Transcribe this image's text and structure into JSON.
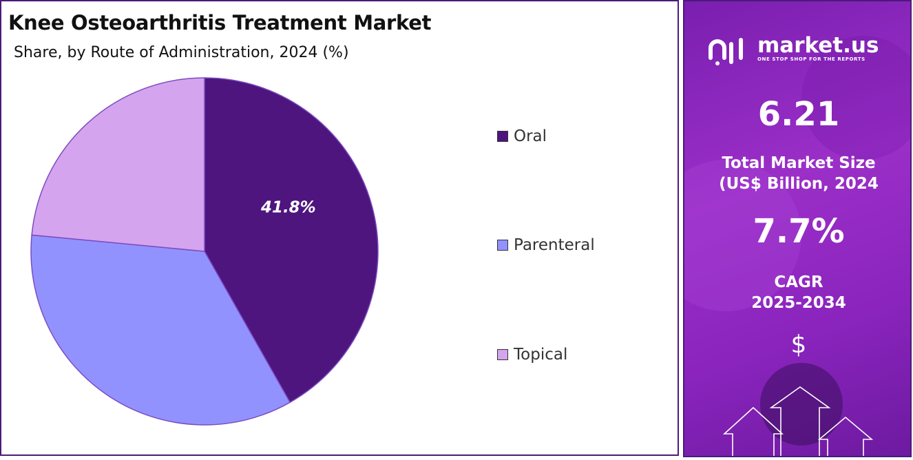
{
  "title": "Knee Osteoarthritis Treatment Market",
  "subtitle": "Share, by Route of Administration, 2024 (%)",
  "chart_data": {
    "type": "pie",
    "title": "Knee Osteoarthritis Treatment Market",
    "subtitle": "Share, by Route of Administration, 2024 (%)",
    "categories": [
      "Oral",
      "Parenteral",
      "Topical"
    ],
    "values": [
      41.8,
      34.7,
      23.5
    ],
    "colors": [
      "#4e157f",
      "#9292ff",
      "#d4a4ee"
    ],
    "labels": [
      "41.8%",
      "",
      ""
    ],
    "legend_position": "right"
  },
  "sidebar": {
    "logo_text": "market.us",
    "logo_tagline": "ONE STOP SHOP FOR THE REPORTS",
    "market_size_value": "6.21",
    "market_size_label_line1": "Total Market Size",
    "market_size_label_line2": "(US$ Billion, 2024",
    "cagr_value": "7.7%",
    "cagr_label_line1": "CAGR",
    "cagr_label_line2": "2025-2034",
    "currency_symbol": "$"
  }
}
